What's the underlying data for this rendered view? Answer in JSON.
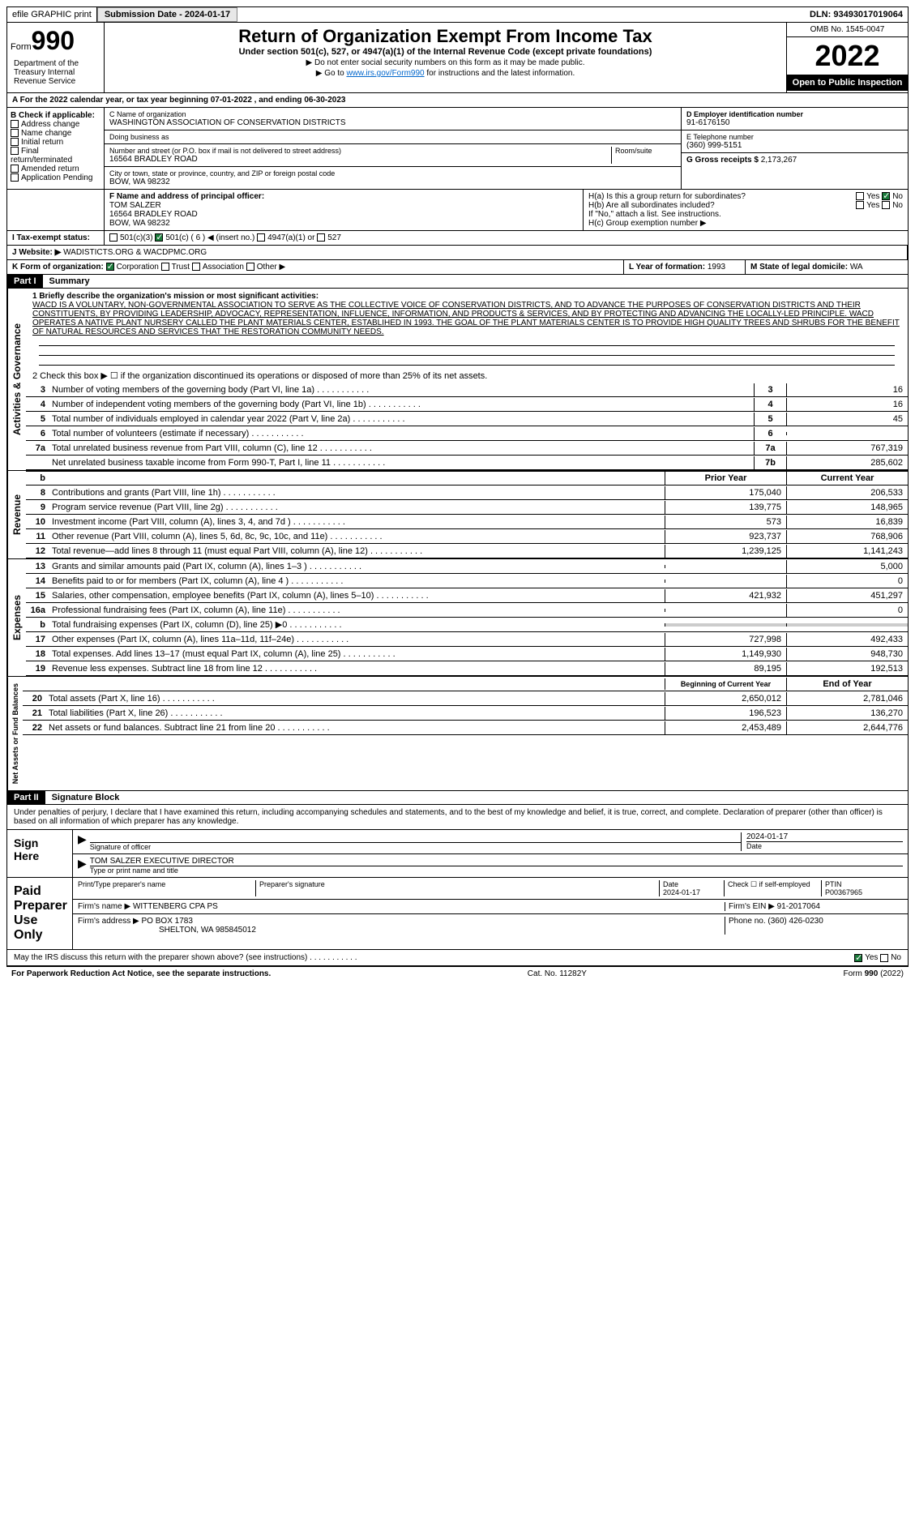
{
  "topbar": {
    "efile": "efile GRAPHIC print",
    "submission": "Submission Date - 2024-01-17",
    "dln": "DLN: 93493017019064"
  },
  "header": {
    "form_label": "Form",
    "form_num": "990",
    "title": "Return of Organization Exempt From Income Tax",
    "subtitle": "Under section 501(c), 527, or 4947(a)(1) of the Internal Revenue Code (except private foundations)",
    "note1": "▶ Do not enter social security numbers on this form as it may be made public.",
    "note2_pre": "▶ Go to ",
    "note2_link": "www.irs.gov/Form990",
    "note2_post": " for instructions and the latest information.",
    "omb": "OMB No. 1545-0047",
    "year": "2022",
    "inspect": "Open to Public Inspection",
    "dept": "Department of the Treasury Internal Revenue Service"
  },
  "period": "A For the 2022 calendar year, or tax year beginning 07-01-2022   , and ending 06-30-2023",
  "boxB": {
    "label": "B Check if applicable:",
    "items": [
      "Address change",
      "Name change",
      "Initial return",
      "Final return/terminated",
      "Amended return",
      "Application Pending"
    ]
  },
  "boxC": {
    "name_label": "C Name of organization",
    "name": "WASHINGTON ASSOCIATION OF CONSERVATION DISTRICTS",
    "dba_label": "Doing business as",
    "addr_label": "Number and street (or P.O. box if mail is not delivered to street address)",
    "addr": "16564 BRADLEY ROAD",
    "room_label": "Room/suite",
    "city_label": "City or town, state or province, country, and ZIP or foreign postal code",
    "city": "BOW, WA  98232"
  },
  "boxD": {
    "label": "D Employer identification number",
    "value": "91-6176150"
  },
  "boxE": {
    "label": "E Telephone number",
    "value": "(360) 999-5151"
  },
  "boxG": {
    "label": "G Gross receipts $",
    "value": "2,173,267"
  },
  "boxF": {
    "label": "F  Name and address of principal officer:",
    "name": "TOM SALZER",
    "addr1": "16564 BRADLEY ROAD",
    "addr2": "BOW, WA  98232"
  },
  "boxH": {
    "a": "H(a)  Is this a group return for subordinates?",
    "b": "H(b)  Are all subordinates included?",
    "b_note": "If \"No,\" attach a list. See instructions.",
    "c": "H(c)  Group exemption number ▶"
  },
  "boxI": {
    "label": "I  Tax-exempt status:",
    "opts": [
      "501(c)(3)",
      "501(c) ( 6 ) ◀ (insert no.)",
      "4947(a)(1) or",
      "527"
    ]
  },
  "boxJ": {
    "label": "J  Website: ▶",
    "value": "WADISTICTS.ORG & WACDPMC.ORG"
  },
  "boxK": {
    "label": "K Form of organization:",
    "opts": [
      "Corporation",
      "Trust",
      "Association",
      "Other ▶"
    ]
  },
  "boxL": {
    "label": "L Year of formation:",
    "value": "1993"
  },
  "boxM": {
    "label": "M State of legal domicile:",
    "value": "WA"
  },
  "part1": {
    "label": "Part I",
    "title": "Summary"
  },
  "mission": {
    "label": "1  Briefly describe the organization's mission or most significant activities:",
    "text": "WACD IS A VOLUNTARY, NON-GOVERNMENTAL ASSOCIATION TO SERVE AS THE COLLECTIVE VOICE OF CONSERVATION DISTRICTS, AND TO ADVANCE THE PURPOSES OF CONSERVATION DISTRICTS AND THEIR CONSTITUENTS, BY PROVIDING LEADERSHIP, ADVOCACY, REPRESENTATION, INFLUENCE, INFORMATION, AND PRODUCTS & SERVICES, AND BY PROTECTING AND ADVANCING THE LOCALLY-LED PRINCIPLE. WACD OPERATES A NATIVE PLANT NURSERY CALLED THE PLANT MATERIALS CENTER, ESTABLIHED IN 1993. THE GOAL OF THE PLANT MATERIALS CENTER IS TO PROVIDE HIGH QUALITY TREES AND SHRUBS FOR THE BENEFIT OF NATURAL RESOURCES AND SERVICES THAT THE RESTORATION COMMUNITY NEEDS."
  },
  "line2": "2  Check this box ▶ ☐ if the organization discontinued its operations or disposed of more than 25% of its net assets.",
  "activities": {
    "label": "Activities & Governance",
    "lines": [
      {
        "num": "3",
        "text": "Number of voting members of the governing body (Part VI, line 1a)",
        "box": "3",
        "val": "16"
      },
      {
        "num": "4",
        "text": "Number of independent voting members of the governing body (Part VI, line 1b)",
        "box": "4",
        "val": "16"
      },
      {
        "num": "5",
        "text": "Total number of individuals employed in calendar year 2022 (Part V, line 2a)",
        "box": "5",
        "val": "45"
      },
      {
        "num": "6",
        "text": "Total number of volunteers (estimate if necessary)",
        "box": "6",
        "val": ""
      },
      {
        "num": "7a",
        "text": "Total unrelated business revenue from Part VIII, column (C), line 12",
        "box": "7a",
        "val": "767,319"
      },
      {
        "num": "",
        "text": "Net unrelated business taxable income from Form 990-T, Part I, line 11",
        "box": "7b",
        "val": "285,602"
      }
    ]
  },
  "col_headers": {
    "prior": "Prior Year",
    "current": "Current Year"
  },
  "revenue": {
    "label": "Revenue",
    "lines": [
      {
        "num": "8",
        "text": "Contributions and grants (Part VIII, line 1h)",
        "prior": "175,040",
        "current": "206,533"
      },
      {
        "num": "9",
        "text": "Program service revenue (Part VIII, line 2g)",
        "prior": "139,775",
        "current": "148,965"
      },
      {
        "num": "10",
        "text": "Investment income (Part VIII, column (A), lines 3, 4, and 7d )",
        "prior": "573",
        "current": "16,839"
      },
      {
        "num": "11",
        "text": "Other revenue (Part VIII, column (A), lines 5, 6d, 8c, 9c, 10c, and 11e)",
        "prior": "923,737",
        "current": "768,906"
      },
      {
        "num": "12",
        "text": "Total revenue—add lines 8 through 11 (must equal Part VIII, column (A), line 12)",
        "prior": "1,239,125",
        "current": "1,141,243"
      }
    ]
  },
  "expenses": {
    "label": "Expenses",
    "lines": [
      {
        "num": "13",
        "text": "Grants and similar amounts paid (Part IX, column (A), lines 1–3 )",
        "prior": "",
        "current": "5,000"
      },
      {
        "num": "14",
        "text": "Benefits paid to or for members (Part IX, column (A), line 4 )",
        "prior": "",
        "current": "0"
      },
      {
        "num": "15",
        "text": "Salaries, other compensation, employee benefits (Part IX, column (A), lines 5–10)",
        "prior": "421,932",
        "current": "451,297"
      },
      {
        "num": "16a",
        "text": "Professional fundraising fees (Part IX, column (A), line 11e)",
        "prior": "",
        "current": "0"
      },
      {
        "num": "b",
        "text": "Total fundraising expenses (Part IX, column (D), line 25) ▶0",
        "prior": "shaded",
        "current": "shaded"
      },
      {
        "num": "17",
        "text": "Other expenses (Part IX, column (A), lines 11a–11d, 11f–24e)",
        "prior": "727,998",
        "current": "492,433"
      },
      {
        "num": "18",
        "text": "Total expenses. Add lines 13–17 (must equal Part IX, column (A), line 25)",
        "prior": "1,149,930",
        "current": "948,730"
      },
      {
        "num": "19",
        "text": "Revenue less expenses. Subtract line 18 from line 12",
        "prior": "89,195",
        "current": "192,513"
      }
    ]
  },
  "net_headers": {
    "begin": "Beginning of Current Year",
    "end": "End of Year"
  },
  "netassets": {
    "label": "Net Assets or Fund Balances",
    "lines": [
      {
        "num": "20",
        "text": "Total assets (Part X, line 16)",
        "prior": "2,650,012",
        "current": "2,781,046"
      },
      {
        "num": "21",
        "text": "Total liabilities (Part X, line 26)",
        "prior": "196,523",
        "current": "136,270"
      },
      {
        "num": "22",
        "text": "Net assets or fund balances. Subtract line 21 from line 20",
        "prior": "2,453,489",
        "current": "2,644,776"
      }
    ]
  },
  "part2": {
    "label": "Part II",
    "title": "Signature Block"
  },
  "perjury": "Under penalties of perjury, I declare that I have examined this return, including accompanying schedules and statements, and to the best of my knowledge and belief, it is true, correct, and complete. Declaration of preparer (other than officer) is based on all information of which preparer has any knowledge.",
  "sign": {
    "label": "Sign Here",
    "sig_label": "Signature of officer",
    "date_label": "Date",
    "date": "2024-01-17",
    "name": "TOM SALZER EXECUTIVE DIRECTOR",
    "name_label": "Type or print name and title"
  },
  "preparer": {
    "label": "Paid Preparer Use Only",
    "print_label": "Print/Type preparer's name",
    "sig_label": "Preparer's signature",
    "date_label": "Date",
    "date": "2024-01-17",
    "check_label": "Check ☐ if self-employed",
    "ptin_label": "PTIN",
    "ptin": "P00367965",
    "firm_label": "Firm's name    ▶",
    "firm": "WITTENBERG CPA PS",
    "ein_label": "Firm's EIN ▶",
    "ein": "91-2017064",
    "addr_label": "Firm's address ▶",
    "addr": "PO BOX 1783",
    "addr2": "SHELTON, WA  985845012",
    "phone_label": "Phone no.",
    "phone": "(360) 426-0230"
  },
  "discuss": "May the IRS discuss this return with the preparer shown above? (see instructions)",
  "footer": {
    "left": "For Paperwork Reduction Act Notice, see the separate instructions.",
    "mid": "Cat. No. 11282Y",
    "right": "Form 990 (2022)"
  }
}
